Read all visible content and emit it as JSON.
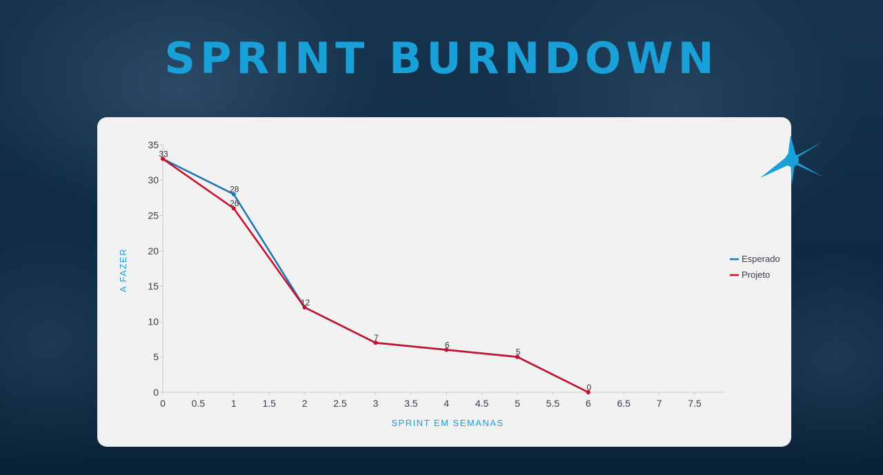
{
  "page": {
    "title": "SPRINT BURNDOWN"
  },
  "chart_data": {
    "type": "line",
    "title": "",
    "xlabel": "SPRINT EM SEMANAS",
    "ylabel": "A FAZER",
    "xlim": [
      0,
      7.5
    ],
    "ylim": [
      0,
      35
    ],
    "x_ticks": [
      "0",
      "0.5",
      "1",
      "1.5",
      "2",
      "2.5",
      "3",
      "3.5",
      "4",
      "4.5",
      "5",
      "5.5",
      "6",
      "6.5",
      "7",
      "7.5"
    ],
    "y_ticks": [
      "0",
      "5",
      "10",
      "15",
      "20",
      "25",
      "30",
      "35"
    ],
    "grid": false,
    "legend_position": "right",
    "series": [
      {
        "name": "Esperado",
        "color": "#1f77b4",
        "points": [
          {
            "x": 0,
            "y": 33
          },
          {
            "x": 1,
            "y": 28
          },
          {
            "x": 2,
            "y": 12
          },
          {
            "x": 3,
            "y": 7
          },
          {
            "x": 4,
            "y": 6
          },
          {
            "x": 5,
            "y": 5
          },
          {
            "x": 6,
            "y": 0
          }
        ]
      },
      {
        "name": "Projeto",
        "color": "#c8102e",
        "points": [
          {
            "x": 0,
            "y": 33
          },
          {
            "x": 1,
            "y": 26
          },
          {
            "x": 2,
            "y": 12
          },
          {
            "x": 3,
            "y": 7
          },
          {
            "x": 4,
            "y": 6
          },
          {
            "x": 5,
            "y": 5
          },
          {
            "x": 6,
            "y": 0
          }
        ]
      }
    ],
    "data_labels": [
      {
        "x": 0,
        "y": 33,
        "text": "33"
      },
      {
        "x": 1,
        "y": 28,
        "text": "28"
      },
      {
        "x": 1,
        "y": 26,
        "text": "26"
      },
      {
        "x": 2,
        "y": 12,
        "text": "12"
      },
      {
        "x": 3,
        "y": 7,
        "text": "7"
      },
      {
        "x": 4,
        "y": 6,
        "text": "6"
      },
      {
        "x": 5,
        "y": 5,
        "text": "5"
      },
      {
        "x": 6,
        "y": 0,
        "text": "0"
      }
    ]
  },
  "colors": {
    "title": "#1aa0d8",
    "accent_star": "#1aa0d8",
    "background": "#0f2b45",
    "card": "#f2f2f2"
  }
}
